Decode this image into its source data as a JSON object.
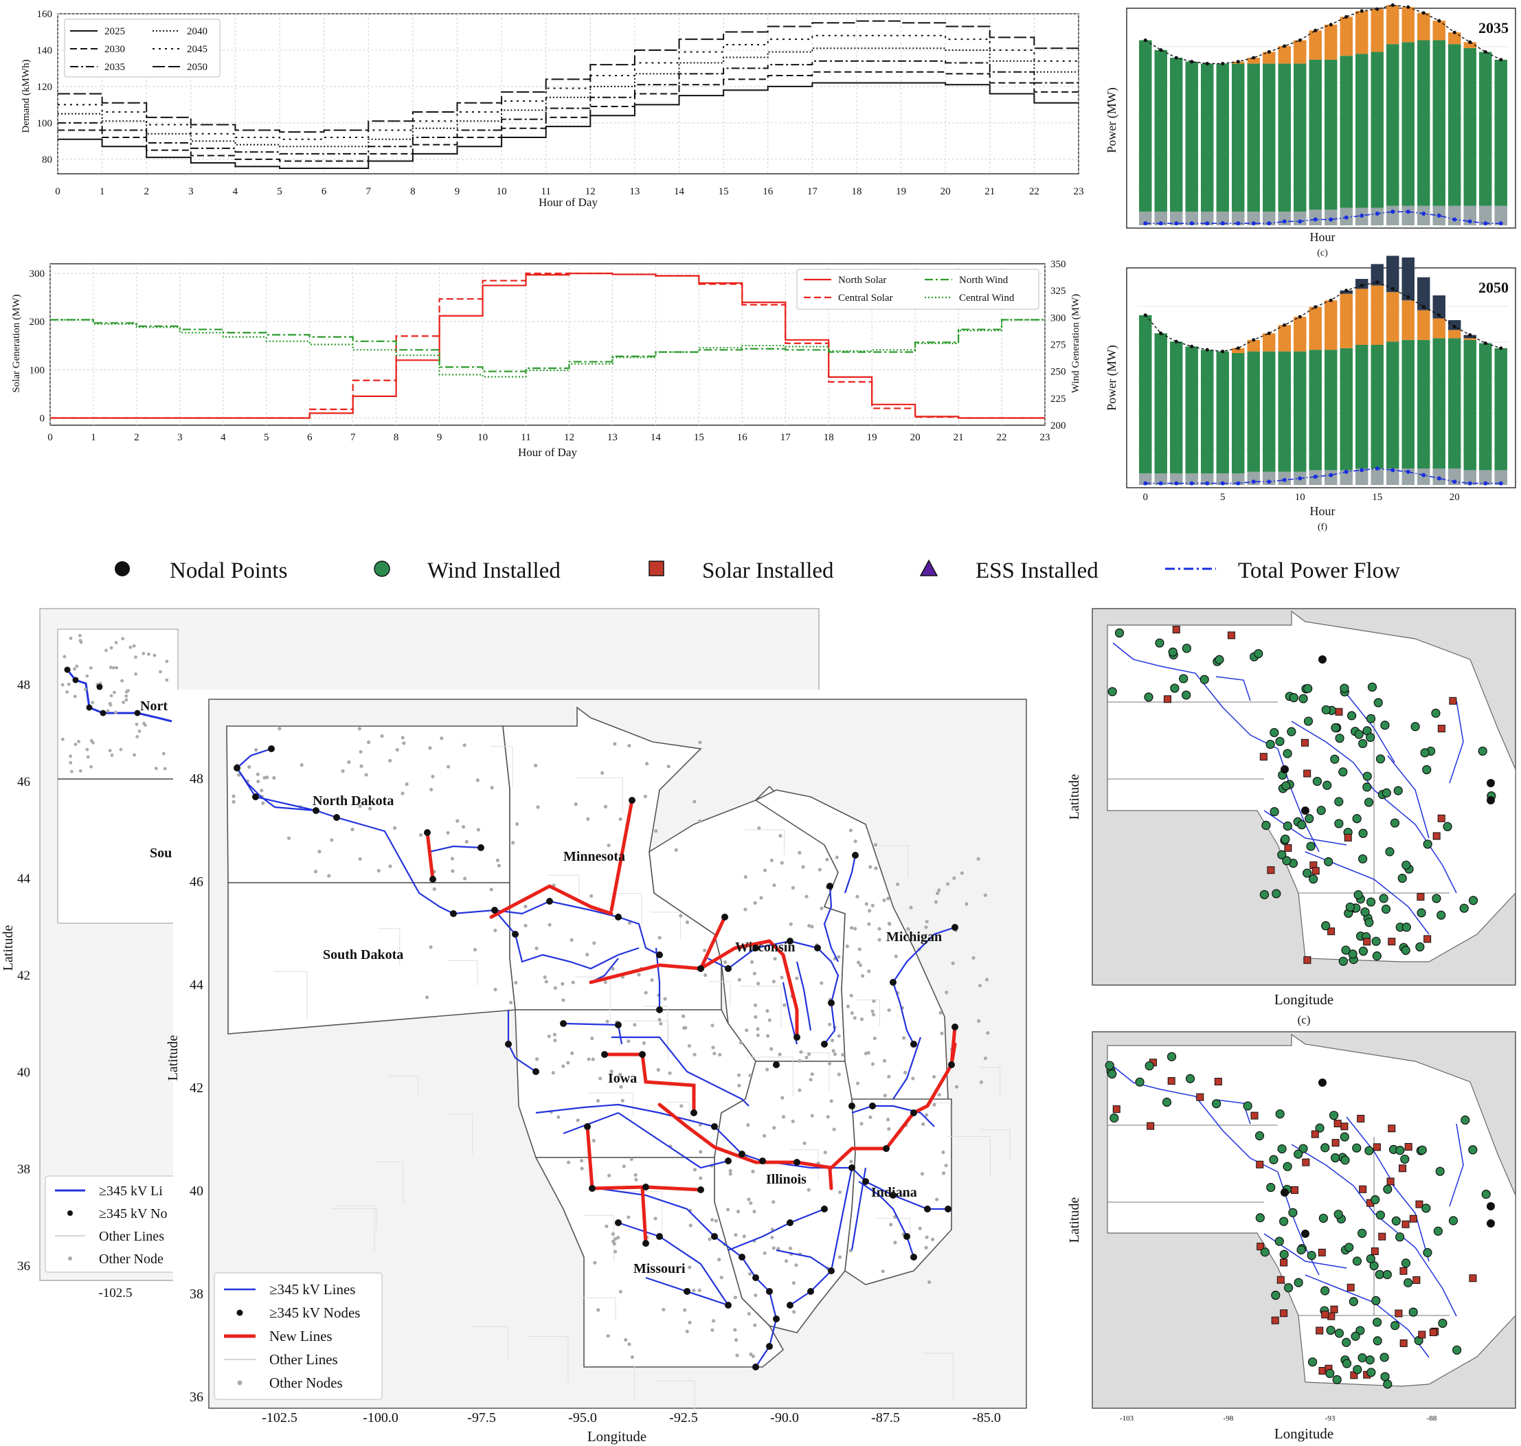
{
  "demand_chart": {
    "ylabel": "Demand (kMWh)",
    "xlabel": "Hour of Day",
    "legend": [
      "2025",
      "2030",
      "2035",
      "2040",
      "2045",
      "2050"
    ]
  },
  "gen_chart": {
    "ylabel_left": "Solar Generation (MW)",
    "ylabel_right": "Wind Generation (MW)",
    "xlabel": "Hour of Day",
    "legend": [
      "North Solar",
      "Central Solar",
      "North Wind",
      "Central Wind"
    ]
  },
  "dispatch_2035": {
    "year": "2035",
    "ylabel": "Power (MW)",
    "xlabel": "Hour",
    "caption": "(c)"
  },
  "dispatch_2050": {
    "year": "2050",
    "ylabel": "Power (MW)",
    "xlabel": "Hour",
    "caption": "(f)"
  },
  "legend_bar": {
    "items": [
      "Nodal Points",
      "Wind Installed",
      "Solar Installed",
      "ESS Installed",
      "Total Power Flow"
    ]
  },
  "map_back": {
    "ylabel": "Latitude",
    "xtick": "-102.5",
    "yticks": [
      "48",
      "46",
      "44",
      "42",
      "40",
      "38",
      "36"
    ],
    "state_labels": [
      "Nort",
      "Sou"
    ],
    "legend": [
      "≥345 kV Li",
      "≥345 kV No",
      "Other Lines",
      "Other Node"
    ]
  },
  "map_front": {
    "ylabel": "Latitude",
    "xlabel": "Longitude",
    "xticks": [
      "-102.5",
      "-100.0",
      "-97.5",
      "-95.0",
      "-92.5",
      "-90.0",
      "-87.5",
      "-85.0"
    ],
    "yticks": [
      "48",
      "46",
      "44",
      "42",
      "40",
      "38",
      "36"
    ],
    "states": [
      "North Dakota",
      "South Dakota",
      "Minnesota",
      "Wisconsin",
      "Michigan",
      "Iowa",
      "Illinois",
      "Indiana",
      "Missouri"
    ],
    "legend": [
      "≥345 kV Lines",
      "≥345 kV Nodes",
      "New Lines",
      "Other Lines",
      "Other Nodes"
    ]
  },
  "map_right_c": {
    "ylabel": "Latitude",
    "xlabel": "Longitude",
    "caption": "(c)"
  },
  "map_right_f": {
    "ylabel": "Latitude",
    "xlabel": "Longitude",
    "xticks": [
      "-103",
      "-98",
      "-93",
      "-88"
    ]
  },
  "colors": {
    "solar_red": "#e8221b",
    "wind_green": "#2a9a2a",
    "line_blue": "#2233dd",
    "bar_green": "#2e8b4f",
    "bar_orange": "#e88c30",
    "bar_grey": "#9aa6a8",
    "bar_navy": "#2c3b52",
    "dot_blue": "#1a2fe0",
    "node_grey": "#aaaaaa"
  },
  "chart_data": [
    {
      "type": "line",
      "title": "",
      "xlabel": "Hour of Day",
      "ylabel": "Demand (kMWh)",
      "ylim": [
        72,
        160
      ],
      "x": [
        0,
        1,
        2,
        3,
        4,
        5,
        6,
        7,
        8,
        9,
        10,
        11,
        12,
        13,
        14,
        15,
        16,
        17,
        18,
        19,
        20,
        21,
        22
      ],
      "series": [
        {
          "name": "2025",
          "values": [
            91,
            87,
            81,
            78,
            76,
            75,
            75,
            79,
            83,
            87,
            92,
            98,
            104,
            110,
            115,
            118,
            120,
            122,
            122,
            122,
            121,
            116,
            111
          ]
        },
        {
          "name": "2030",
          "values": [
            96,
            92,
            85,
            82,
            80,
            79,
            79,
            83,
            88,
            92,
            97,
            103,
            109,
            116,
            121,
            124,
            126,
            128,
            128,
            128,
            127,
            122,
            117
          ]
        },
        {
          "name": "2035",
          "values": [
            100,
            96,
            89,
            86,
            84,
            83,
            83,
            87,
            92,
            96,
            102,
            108,
            114,
            121,
            127,
            130,
            132,
            134,
            134,
            134,
            133,
            128,
            122
          ]
        },
        {
          "name": "2040",
          "values": [
            105,
            101,
            94,
            90,
            88,
            87,
            87,
            91,
            97,
            101,
            107,
            114,
            120,
            127,
            133,
            136,
            139,
            141,
            141,
            141,
            140,
            134,
            128
          ]
        },
        {
          "name": "2045",
          "values": [
            110,
            106,
            99,
            94,
            92,
            91,
            92,
            96,
            101,
            106,
            112,
            119,
            126,
            133,
            139,
            143,
            146,
            148,
            148,
            148,
            146,
            140,
            134
          ]
        },
        {
          "name": "2050",
          "values": [
            116,
            111,
            103,
            99,
            96,
            95,
            96,
            101,
            106,
            111,
            117,
            124,
            132,
            140,
            146,
            150,
            153,
            155,
            156,
            155,
            153,
            147,
            141
          ]
        }
      ]
    },
    {
      "type": "line",
      "title": "",
      "xlabel": "Hour of Day",
      "ylabel": "Solar Generation (MW)",
      "ylabel_right": "Wind Generation (MW)",
      "ylim": [
        -15,
        320
      ],
      "ylim_right": [
        200,
        350
      ],
      "x": [
        0,
        1,
        2,
        3,
        4,
        5,
        6,
        7,
        8,
        9,
        10,
        11,
        12,
        13,
        14,
        15,
        16,
        17,
        18,
        19,
        20,
        21,
        22
      ],
      "series": [
        {
          "name": "North Solar",
          "axis": "left",
          "values": [
            0,
            0,
            0,
            0,
            0,
            0,
            10,
            45,
            120,
            212,
            275,
            297,
            300,
            298,
            295,
            280,
            240,
            162,
            85,
            28,
            3,
            0,
            0
          ]
        },
        {
          "name": "Central Solar",
          "axis": "left",
          "values": [
            0,
            0,
            0,
            0,
            0,
            0,
            18,
            78,
            170,
            247,
            285,
            300,
            300,
            298,
            295,
            278,
            235,
            155,
            75,
            20,
            2,
            0,
            0
          ]
        },
        {
          "name": "North Wind",
          "axis": "right",
          "values": [
            298,
            295,
            292,
            289,
            286,
            284,
            282,
            278,
            270,
            254,
            250,
            253,
            259,
            264,
            268,
            270,
            271,
            270,
            268,
            268,
            277,
            289,
            298
          ]
        },
        {
          "name": "Central Wind",
          "axis": "right",
          "values": [
            298,
            294,
            291,
            286,
            282,
            278,
            275,
            270,
            265,
            247,
            245,
            251,
            257,
            263,
            268,
            272,
            274,
            273,
            269,
            270,
            276,
            288,
            298
          ]
        }
      ]
    },
    {
      "type": "bar",
      "title": "2035",
      "xlabel": "Hour",
      "ylabel": "Power (MW)",
      "categories": [
        0,
        1,
        2,
        3,
        4,
        5,
        6,
        7,
        8,
        9,
        10,
        11,
        12,
        13,
        14,
        15,
        16,
        17,
        18,
        19,
        20,
        21,
        22,
        23
      ],
      "series": [
        {
          "name": "grey",
          "values": [
            7,
            7,
            7,
            7,
            7,
            7,
            7,
            7,
            7,
            7,
            7,
            8,
            8,
            9,
            9,
            9,
            10,
            10,
            10,
            10,
            10,
            10,
            10,
            10
          ]
        },
        {
          "name": "green",
          "values": [
            88,
            83,
            79,
            77,
            76,
            76,
            76,
            76,
            76,
            76,
            76,
            77,
            77,
            78,
            79,
            80,
            83,
            84,
            85,
            85,
            83,
            81,
            79,
            75
          ]
        },
        {
          "name": "orange",
          "values": [
            0,
            0,
            0,
            0,
            0,
            0,
            1,
            3,
            6,
            9,
            12,
            15,
            18,
            20,
            22,
            22,
            20,
            18,
            14,
            10,
            6,
            3,
            0,
            0
          ]
        },
        {
          "name": "navy",
          "values": [
            0,
            0,
            0,
            0,
            0,
            0,
            0,
            0,
            0,
            0,
            0,
            0,
            0,
            0,
            0,
            0,
            0,
            0,
            0,
            0,
            0,
            0,
            0,
            0
          ]
        },
        {
          "name": "dot",
          "values": [
            1,
            1,
            1,
            1,
            1,
            1,
            1,
            1,
            1,
            2,
            2,
            3,
            3,
            4,
            5,
            6,
            7,
            7,
            6,
            5,
            3,
            2,
            1,
            1
          ]
        }
      ]
    },
    {
      "type": "bar",
      "title": "2050",
      "xlabel": "Hour",
      "ylabel": "Power (MW)",
      "categories": [
        0,
        1,
        2,
        3,
        4,
        5,
        6,
        7,
        8,
        9,
        10,
        11,
        12,
        13,
        14,
        15,
        16,
        17,
        18,
        19,
        20,
        21,
        22,
        23
      ],
      "series": [
        {
          "name": "grey",
          "values": [
            7,
            7,
            7,
            7,
            7,
            7,
            7,
            8,
            8,
            8,
            8,
            9,
            9,
            9,
            10,
            10,
            10,
            10,
            10,
            10,
            10,
            9,
            9,
            9
          ]
        },
        {
          "name": "green",
          "values": [
            96,
            85,
            80,
            77,
            75,
            74,
            73,
            73,
            73,
            73,
            73,
            73,
            73,
            74,
            75,
            75,
            77,
            78,
            78,
            79,
            79,
            79,
            77,
            74
          ]
        },
        {
          "name": "orange",
          "values": [
            0,
            0,
            0,
            0,
            0,
            0,
            3,
            7,
            11,
            16,
            21,
            26,
            30,
            33,
            34,
            36,
            30,
            24,
            18,
            12,
            5,
            1,
            0,
            0
          ]
        },
        {
          "name": "navy",
          "values": [
            0,
            0,
            0,
            0,
            0,
            0,
            0,
            0,
            0,
            0,
            0,
            0,
            0,
            2,
            6,
            13,
            22,
            26,
            20,
            14,
            6,
            2,
            0,
            0
          ]
        },
        {
          "name": "dot",
          "values": [
            1,
            1,
            1,
            1,
            1,
            1,
            1,
            2,
            2,
            3,
            4,
            5,
            6,
            8,
            9,
            10,
            9,
            8,
            6,
            4,
            2,
            1,
            1,
            1
          ]
        }
      ]
    }
  ]
}
